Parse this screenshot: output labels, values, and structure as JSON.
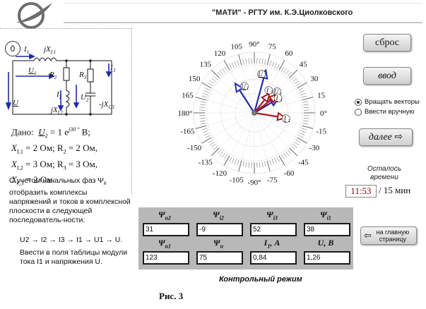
{
  "header": {
    "title": "\"МАТИ\" - РГТУ им.  К.Э.Циолковского"
  },
  "badge": "0",
  "circuit": {
    "I1": "I",
    "I1_sub": "1",
    "jXL1": "jX",
    "jXL1_sub": "L1",
    "U1": "U",
    "U1_sub": "1",
    "R2": "R",
    "R2_sub": "2",
    "R3": "R",
    "R3_sub": "3",
    "I3": "I",
    "I3_sub": "3",
    "I2": "I",
    "I2_sub": "2",
    "U2": "U",
    "U2_sub": "2",
    "jXL2": "jX",
    "jXL2_sub": "L2",
    "jXC3": "-jX",
    "jXC3_sub": "C3",
    "U": "U"
  },
  "given": {
    "title": "Дано:",
    "u2": "U",
    "u2_sub": "2",
    "u2_eq": "= 1 e",
    "u2_exp": "j30 °",
    "u2_unit": "В;",
    "row1": "X",
    "row1_sub": "L1",
    "row1_rest": " = 2 Ом;  R",
    "row1_sub2": "2",
    "row1_rest2": " = 2 Ом,",
    "row2": "X",
    "row2_sub": "L2",
    "row2_rest": " = 3 Ом;  R",
    "row2_sub2": "3",
    "row2_rest2": " = 3 Ом,",
    "row3": "X",
    "row3_sub": "C3",
    "row3_rest": " = 2 Ом."
  },
  "instruction": "С учетом начальных фаз Ψ",
  "instruction_sub": "k",
  "instruction_rest": " отобразить комплексы напряжений и токов в комплексной плоскости в следующей последователь-ности:",
  "sequence": "U2 → I2 → I3 → I1 → U1 → U.",
  "note": "Ввести в поля таблицы модули тока I1 и напряжения U.",
  "diagram": {
    "angle_labels": [
      {
        "deg": 0,
        "text": "0°"
      },
      {
        "deg": 15,
        "text": "15"
      },
      {
        "deg": 30,
        "text": "30"
      },
      {
        "deg": 45,
        "text": "45"
      },
      {
        "deg": 60,
        "text": "60"
      },
      {
        "deg": 75,
        "text": "75"
      },
      {
        "deg": 90,
        "text": "90°"
      },
      {
        "deg": 105,
        "text": "105"
      },
      {
        "deg": 120,
        "text": "120"
      },
      {
        "deg": 135,
        "text": "135"
      },
      {
        "deg": 150,
        "text": "150"
      },
      {
        "deg": 165,
        "text": "165"
      },
      {
        "deg": 180,
        "text": "180°"
      },
      {
        "deg": -15,
        "text": "-15"
      },
      {
        "deg": -30,
        "text": "-30"
      },
      {
        "deg": -45,
        "text": "-45"
      },
      {
        "deg": -60,
        "text": "-60"
      },
      {
        "deg": -75,
        "text": "-75"
      },
      {
        "deg": -90,
        "text": "-90°"
      },
      {
        "deg": -105,
        "text": "-105"
      },
      {
        "deg": -120,
        "text": "-120"
      },
      {
        "deg": -135,
        "text": "-135"
      },
      {
        "deg": -150,
        "text": "-150"
      },
      {
        "deg": -165,
        "text": "-165"
      }
    ],
    "vectors": [
      {
        "name": "U",
        "sub": "",
        "angle": 75,
        "mag": 1.26,
        "color": "#1a2bb3"
      },
      {
        "name": "U",
        "sub": "1",
        "angle": 123,
        "mag": 1.0,
        "color": "#1a2bb3"
      },
      {
        "name": "U",
        "sub": "2",
        "angle": 31,
        "mag": 0.8,
        "color": "#1a2bb3"
      },
      {
        "name": "I",
        "sub": "1",
        "angle": 38,
        "mag": 0.84,
        "color": "#b01818"
      },
      {
        "name": "I",
        "sub": "2",
        "angle": -9,
        "mag": 0.9,
        "color": "#b01818"
      },
      {
        "name": "I",
        "sub": "3",
        "angle": 52,
        "mag": 0.7,
        "color": "#b01818"
      }
    ],
    "vector_labels": [
      {
        "text": "U",
        "sub": "",
        "angle": 79,
        "r": 0.78
      },
      {
        "text": "U",
        "sub": "1",
        "angle": 112,
        "r": 0.55
      },
      {
        "text": "U",
        "sub": "2",
        "angle": 40,
        "r": 0.62
      },
      {
        "text": "I",
        "sub": "1",
        "angle": 28,
        "r": 0.56
      },
      {
        "text": "I",
        "sub": "2",
        "angle": -14,
        "r": 0.68
      },
      {
        "text": "I",
        "sub": "3",
        "angle": 55,
        "r": 0.52
      }
    ]
  },
  "buttons": {
    "reset": "сброс",
    "enter": "ввод",
    "next": "далее"
  },
  "radios": {
    "rotate": "Вращать векторы",
    "manual": "Ввести вручную"
  },
  "timer": {
    "label": "Осталось времени",
    "current": "11:53",
    "total": "/ 15 мин"
  },
  "table": {
    "headers_row1": [
      "Ψ",
      "Ψ",
      "Ψ",
      "Ψ"
    ],
    "headers_row1_sub": [
      "u2",
      "i2",
      "i3",
      "i1"
    ],
    "values_row1": [
      "31",
      "-9",
      "52",
      "38"
    ],
    "headers_row2": [
      "Ψ",
      "Ψ",
      "I",
      "U, В"
    ],
    "headers_row2_sub": [
      "u1",
      "u",
      "1",
      ""
    ],
    "headers_row2_tail": [
      "",
      "",
      ", А",
      ""
    ],
    "values_row2": [
      "123",
      "75",
      "0,84",
      "1,26"
    ]
  },
  "main_button": "на главную страницу",
  "mode": "Контрольный режим",
  "figure": "Рис. 3"
}
